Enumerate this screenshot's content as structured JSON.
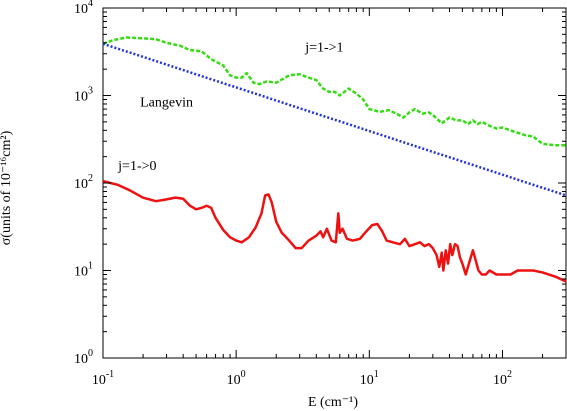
{
  "chart_data": {
    "type": "line",
    "xlabel": "E (cm⁻¹)",
    "ylabel": "σ(units of 10⁻¹⁶cm²)",
    "xscale": "log",
    "yscale": "log",
    "xlim": [
      0.1,
      300
    ],
    "ylim": [
      1,
      10000
    ],
    "x_ticks": [
      {
        "value": 0.1,
        "base": "10",
        "exp": "-1"
      },
      {
        "value": 1,
        "base": "10",
        "exp": "0"
      },
      {
        "value": 10,
        "base": "10",
        "exp": "1"
      },
      {
        "value": 100,
        "base": "10",
        "exp": "2"
      }
    ],
    "y_ticks": [
      {
        "value": 1,
        "base": "10",
        "exp": "0"
      },
      {
        "value": 10,
        "base": "10",
        "exp": "1"
      },
      {
        "value": 100,
        "base": "10",
        "exp": "2"
      },
      {
        "value": 1000,
        "base": "10",
        "exp": "3"
      },
      {
        "value": 10000,
        "base": "10",
        "exp": "4"
      }
    ],
    "grid": false,
    "legend": "none",
    "annotations": [
      {
        "text": "j=1->1",
        "x": 3.3,
        "y": 3200
      },
      {
        "text": "Langevin",
        "x": 0.19,
        "y": 750
      },
      {
        "text": "j=1->0",
        "x": 0.13,
        "y": 140
      }
    ],
    "series": [
      {
        "color": "#33dd11",
        "dash": "dashed",
        "points": [
          [
            0.1,
            3900
          ],
          [
            0.12,
            4300
          ],
          [
            0.15,
            4600
          ],
          [
            0.2,
            4500
          ],
          [
            0.25,
            4400
          ],
          [
            0.3,
            4000
          ],
          [
            0.38,
            3700
          ],
          [
            0.45,
            3300
          ],
          [
            0.55,
            3200
          ],
          [
            0.65,
            2600
          ],
          [
            0.8,
            2200
          ],
          [
            0.9,
            1700
          ],
          [
            1.0,
            1600
          ],
          [
            1.1,
            1600
          ],
          [
            1.2,
            1800
          ],
          [
            1.35,
            1400
          ],
          [
            1.5,
            1350
          ],
          [
            1.7,
            1450
          ],
          [
            2.0,
            1400
          ],
          [
            2.5,
            1700
          ],
          [
            3.0,
            1750
          ],
          [
            3.5,
            1600
          ],
          [
            4.0,
            1500
          ],
          [
            4.5,
            1200
          ],
          [
            5.0,
            1100
          ],
          [
            5.5,
            1100
          ],
          [
            6.0,
            1000
          ],
          [
            6.5,
            1100
          ],
          [
            7.0,
            1200
          ],
          [
            8.0,
            1050
          ],
          [
            9.0,
            900
          ],
          [
            10,
            700
          ],
          [
            12,
            650
          ],
          [
            14,
            680
          ],
          [
            16,
            620
          ],
          [
            18,
            560
          ],
          [
            20,
            640
          ],
          [
            22,
            700
          ],
          [
            25,
            620
          ],
          [
            28,
            640
          ],
          [
            30,
            600
          ],
          [
            35,
            480
          ],
          [
            40,
            560
          ],
          [
            45,
            520
          ],
          [
            50,
            520
          ],
          [
            55,
            470
          ],
          [
            60,
            520
          ],
          [
            65,
            470
          ],
          [
            70,
            500
          ],
          [
            80,
            450
          ],
          [
            90,
            420
          ],
          [
            100,
            430
          ],
          [
            120,
            390
          ],
          [
            150,
            350
          ],
          [
            170,
            340
          ],
          [
            200,
            280
          ],
          [
            250,
            270
          ],
          [
            300,
            270
          ]
        ]
      },
      {
        "name": "Langevin",
        "color": "#2233dd",
        "dash": "dotted",
        "points": [
          [
            0.1,
            3900
          ],
          [
            300,
            72
          ]
        ]
      },
      {
        "color": "#ee1111",
        "dash": "solid",
        "points": [
          [
            0.1,
            105
          ],
          [
            0.13,
            95
          ],
          [
            0.16,
            82
          ],
          [
            0.2,
            68
          ],
          [
            0.25,
            62
          ],
          [
            0.3,
            65
          ],
          [
            0.35,
            68
          ],
          [
            0.4,
            66
          ],
          [
            0.45,
            55
          ],
          [
            0.5,
            50
          ],
          [
            0.55,
            52
          ],
          [
            0.6,
            55
          ],
          [
            0.65,
            52
          ],
          [
            0.7,
            40
          ],
          [
            0.8,
            29
          ],
          [
            0.9,
            24
          ],
          [
            1.0,
            22
          ],
          [
            1.1,
            21
          ],
          [
            1.25,
            24
          ],
          [
            1.4,
            31
          ],
          [
            1.55,
            45
          ],
          [
            1.65,
            72
          ],
          [
            1.75,
            74
          ],
          [
            1.85,
            60
          ],
          [
            2.0,
            36
          ],
          [
            2.2,
            27
          ],
          [
            2.5,
            22
          ],
          [
            2.8,
            18
          ],
          [
            3.1,
            18
          ],
          [
            3.5,
            22
          ],
          [
            4.0,
            25
          ],
          [
            4.3,
            28
          ],
          [
            4.5,
            24
          ],
          [
            4.8,
            30
          ],
          [
            5.2,
            22
          ],
          [
            5.6,
            21
          ],
          [
            5.85,
            45
          ],
          [
            6.0,
            27
          ],
          [
            6.3,
            30
          ],
          [
            6.8,
            23
          ],
          [
            7.5,
            22
          ],
          [
            8.5,
            23
          ],
          [
            9.5,
            28
          ],
          [
            10.5,
            33
          ],
          [
            11.5,
            34
          ],
          [
            12.5,
            28
          ],
          [
            13.5,
            22
          ],
          [
            15,
            21
          ],
          [
            17,
            20
          ],
          [
            18.5,
            23
          ],
          [
            20,
            19
          ],
          [
            22,
            20
          ],
          [
            24,
            21
          ],
          [
            26,
            19
          ],
          [
            28,
            20
          ],
          [
            30,
            18
          ],
          [
            32,
            15
          ],
          [
            33.5,
            11
          ],
          [
            35,
            16
          ],
          [
            36,
            10
          ],
          [
            37.5,
            17
          ],
          [
            39,
            12
          ],
          [
            40.5,
            20
          ],
          [
            42,
            15
          ],
          [
            44,
            20
          ],
          [
            46,
            19
          ],
          [
            48,
            14
          ],
          [
            50,
            12
          ],
          [
            53,
            9
          ],
          [
            56,
            12
          ],
          [
            60,
            17
          ],
          [
            63,
            13
          ],
          [
            66,
            10
          ],
          [
            70,
            9
          ],
          [
            75,
            9
          ],
          [
            80,
            10
          ],
          [
            90,
            9
          ],
          [
            100,
            9
          ],
          [
            115,
            9
          ],
          [
            130,
            10
          ],
          [
            150,
            10
          ],
          [
            170,
            10
          ],
          [
            200,
            9.5
          ],
          [
            250,
            8.5
          ],
          [
            300,
            7.5
          ]
        ]
      }
    ]
  }
}
